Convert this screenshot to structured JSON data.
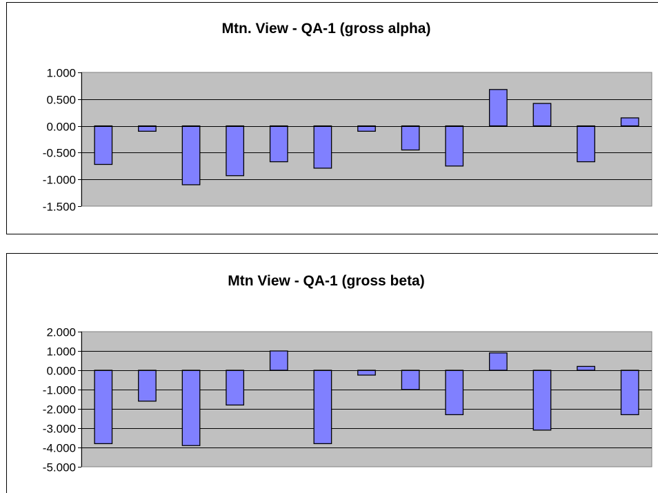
{
  "colors": {
    "plot_background": "#c0c0c0",
    "bar_fill": "#8080ff",
    "bar_stroke": "#000000",
    "gridline": "#000000"
  },
  "chart_data": [
    {
      "type": "bar",
      "title": "Mtn. View - QA-1 (gross alpha)",
      "xlabel": "",
      "ylabel": "",
      "ylim": [
        -1.5,
        1.0
      ],
      "yticks": [
        1.0,
        0.5,
        0.0,
        -0.5,
        -1.0,
        -1.5
      ],
      "ytick_labels": [
        "1.000",
        "0.500",
        "0.000",
        "-0.500",
        "-1.000",
        "-1.500"
      ],
      "grid": true,
      "legend": "none",
      "values": [
        -0.72,
        -0.1,
        -1.1,
        -0.93,
        -0.67,
        -0.79,
        -0.1,
        -0.45,
        -0.75,
        0.68,
        0.42,
        -0.67,
        0.15
      ]
    },
    {
      "type": "bar",
      "title": "Mtn View - QA-1 (gross beta)",
      "xlabel": "",
      "ylabel": "",
      "ylim": [
        -5.0,
        2.0
      ],
      "yticks": [
        2.0,
        1.0,
        0.0,
        -1.0,
        -2.0,
        -3.0,
        -4.0,
        -5.0
      ],
      "ytick_labels": [
        "2.000",
        "1.000",
        "0.000",
        "-1.000",
        "-2.000",
        "-3.000",
        "-4.000",
        "-5.000"
      ],
      "grid": true,
      "legend": "none",
      "values": [
        -3.8,
        -1.6,
        -3.9,
        -1.8,
        1.0,
        -3.8,
        -0.25,
        -1.0,
        -2.3,
        0.9,
        -3.1,
        0.2,
        -2.3
      ]
    }
  ]
}
